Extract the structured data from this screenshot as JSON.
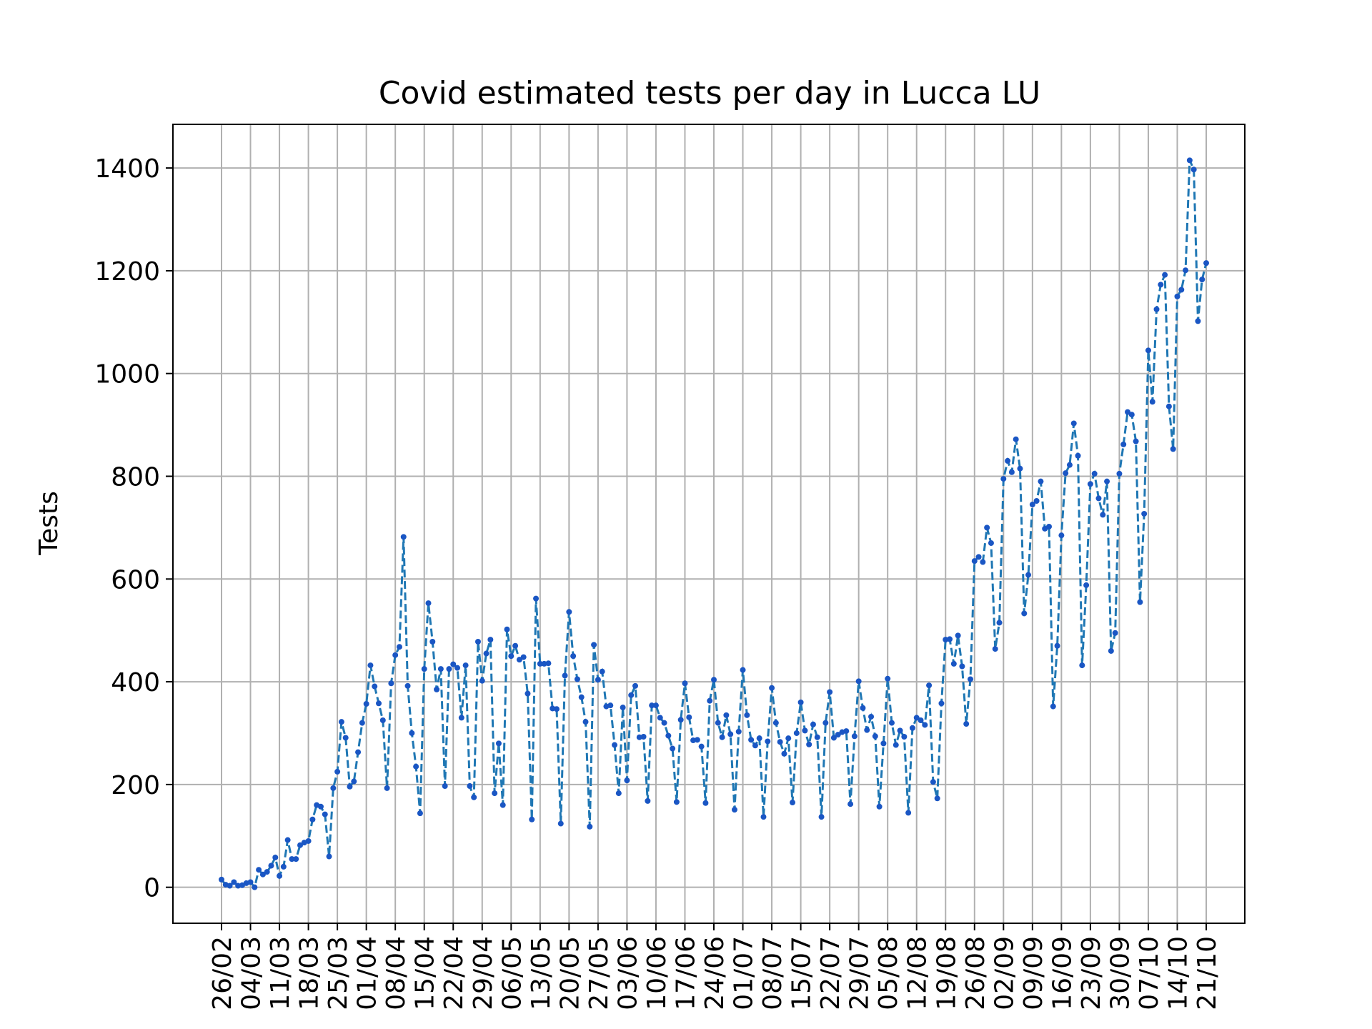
{
  "chart_data": {
    "type": "line",
    "title": "Covid estimated tests per day in Lucca LU",
    "xlabel": "",
    "ylabel": "Tests",
    "ylim": [
      -70,
      1485
    ],
    "yticks": [
      0,
      200,
      400,
      600,
      800,
      1000,
      1200,
      1400
    ],
    "grid": true,
    "series_color": "#1f77b4",
    "marker_color": "#1a56c4",
    "line_style": "dashed",
    "x_tick_labels": [
      "26/02",
      "04/03",
      "11/03",
      "18/03",
      "25/03",
      "01/04",
      "08/04",
      "15/04",
      "22/04",
      "29/04",
      "06/05",
      "13/05",
      "20/05",
      "27/05",
      "03/06",
      "10/06",
      "17/06",
      "24/06",
      "01/07",
      "08/07",
      "15/07",
      "22/07",
      "29/07",
      "05/08",
      "12/08",
      "19/08",
      "26/08",
      "02/09",
      "09/09",
      "16/09",
      "23/09",
      "30/09",
      "07/10",
      "14/10",
      "21/10"
    ],
    "series": [
      {
        "values": [
          15,
          5,
          3,
          10,
          3,
          4,
          8,
          10,
          0,
          34,
          25,
          30,
          42,
          58,
          22,
          40,
          92,
          55,
          55,
          82,
          87,
          90,
          132,
          160,
          157,
          142,
          60,
          193,
          225,
          322,
          291,
          196,
          206,
          263,
          320,
          357,
          432,
          391,
          358,
          325,
          193,
          397,
          452,
          468,
          682,
          392,
          300,
          235,
          144,
          425,
          553,
          478,
          385,
          425,
          197,
          425,
          434,
          427,
          330,
          432,
          197,
          175,
          478,
          402,
          455,
          482,
          183,
          280,
          160,
          502,
          450,
          470,
          443,
          448,
          377,
          132,
          562,
          435,
          435,
          436,
          348,
          347,
          124,
          412,
          536,
          450,
          405,
          370,
          322,
          118,
          472,
          404,
          420,
          352,
          354,
          277,
          183,
          350,
          208,
          374,
          392,
          292,
          293,
          168,
          354,
          354,
          330,
          320,
          295,
          270,
          166,
          326,
          397,
          331,
          286,
          287,
          274,
          164,
          363,
          404,
          320,
          292,
          335,
          298,
          151,
          303,
          423,
          335,
          287,
          276,
          290,
          137,
          284,
          388,
          320,
          283,
          260,
          290,
          165,
          300,
          360,
          305,
          278,
          317,
          292,
          137,
          320,
          380,
          291,
          297,
          302,
          304,
          162,
          294,
          401,
          349,
          306,
          332,
          294,
          157,
          280,
          406,
          320,
          277,
          305,
          293,
          145,
          310,
          330,
          325,
          316,
          393,
          205,
          173,
          358,
          482,
          483,
          435,
          490,
          430,
          318,
          405,
          635,
          643,
          633,
          700,
          670,
          464,
          515,
          795,
          830,
          808,
          872,
          815,
          533,
          608,
          745,
          752,
          790,
          698,
          702,
          352,
          470,
          685,
          806,
          822,
          903,
          840,
          432,
          588,
          785,
          805,
          757,
          725,
          790,
          460,
          495,
          805,
          862,
          925,
          920,
          868,
          555,
          727,
          1045,
          945,
          1125,
          1173,
          1192,
          936,
          853,
          1150,
          1163,
          1201,
          1415,
          1397,
          1102,
          1183,
          1215
        ]
      }
    ]
  }
}
